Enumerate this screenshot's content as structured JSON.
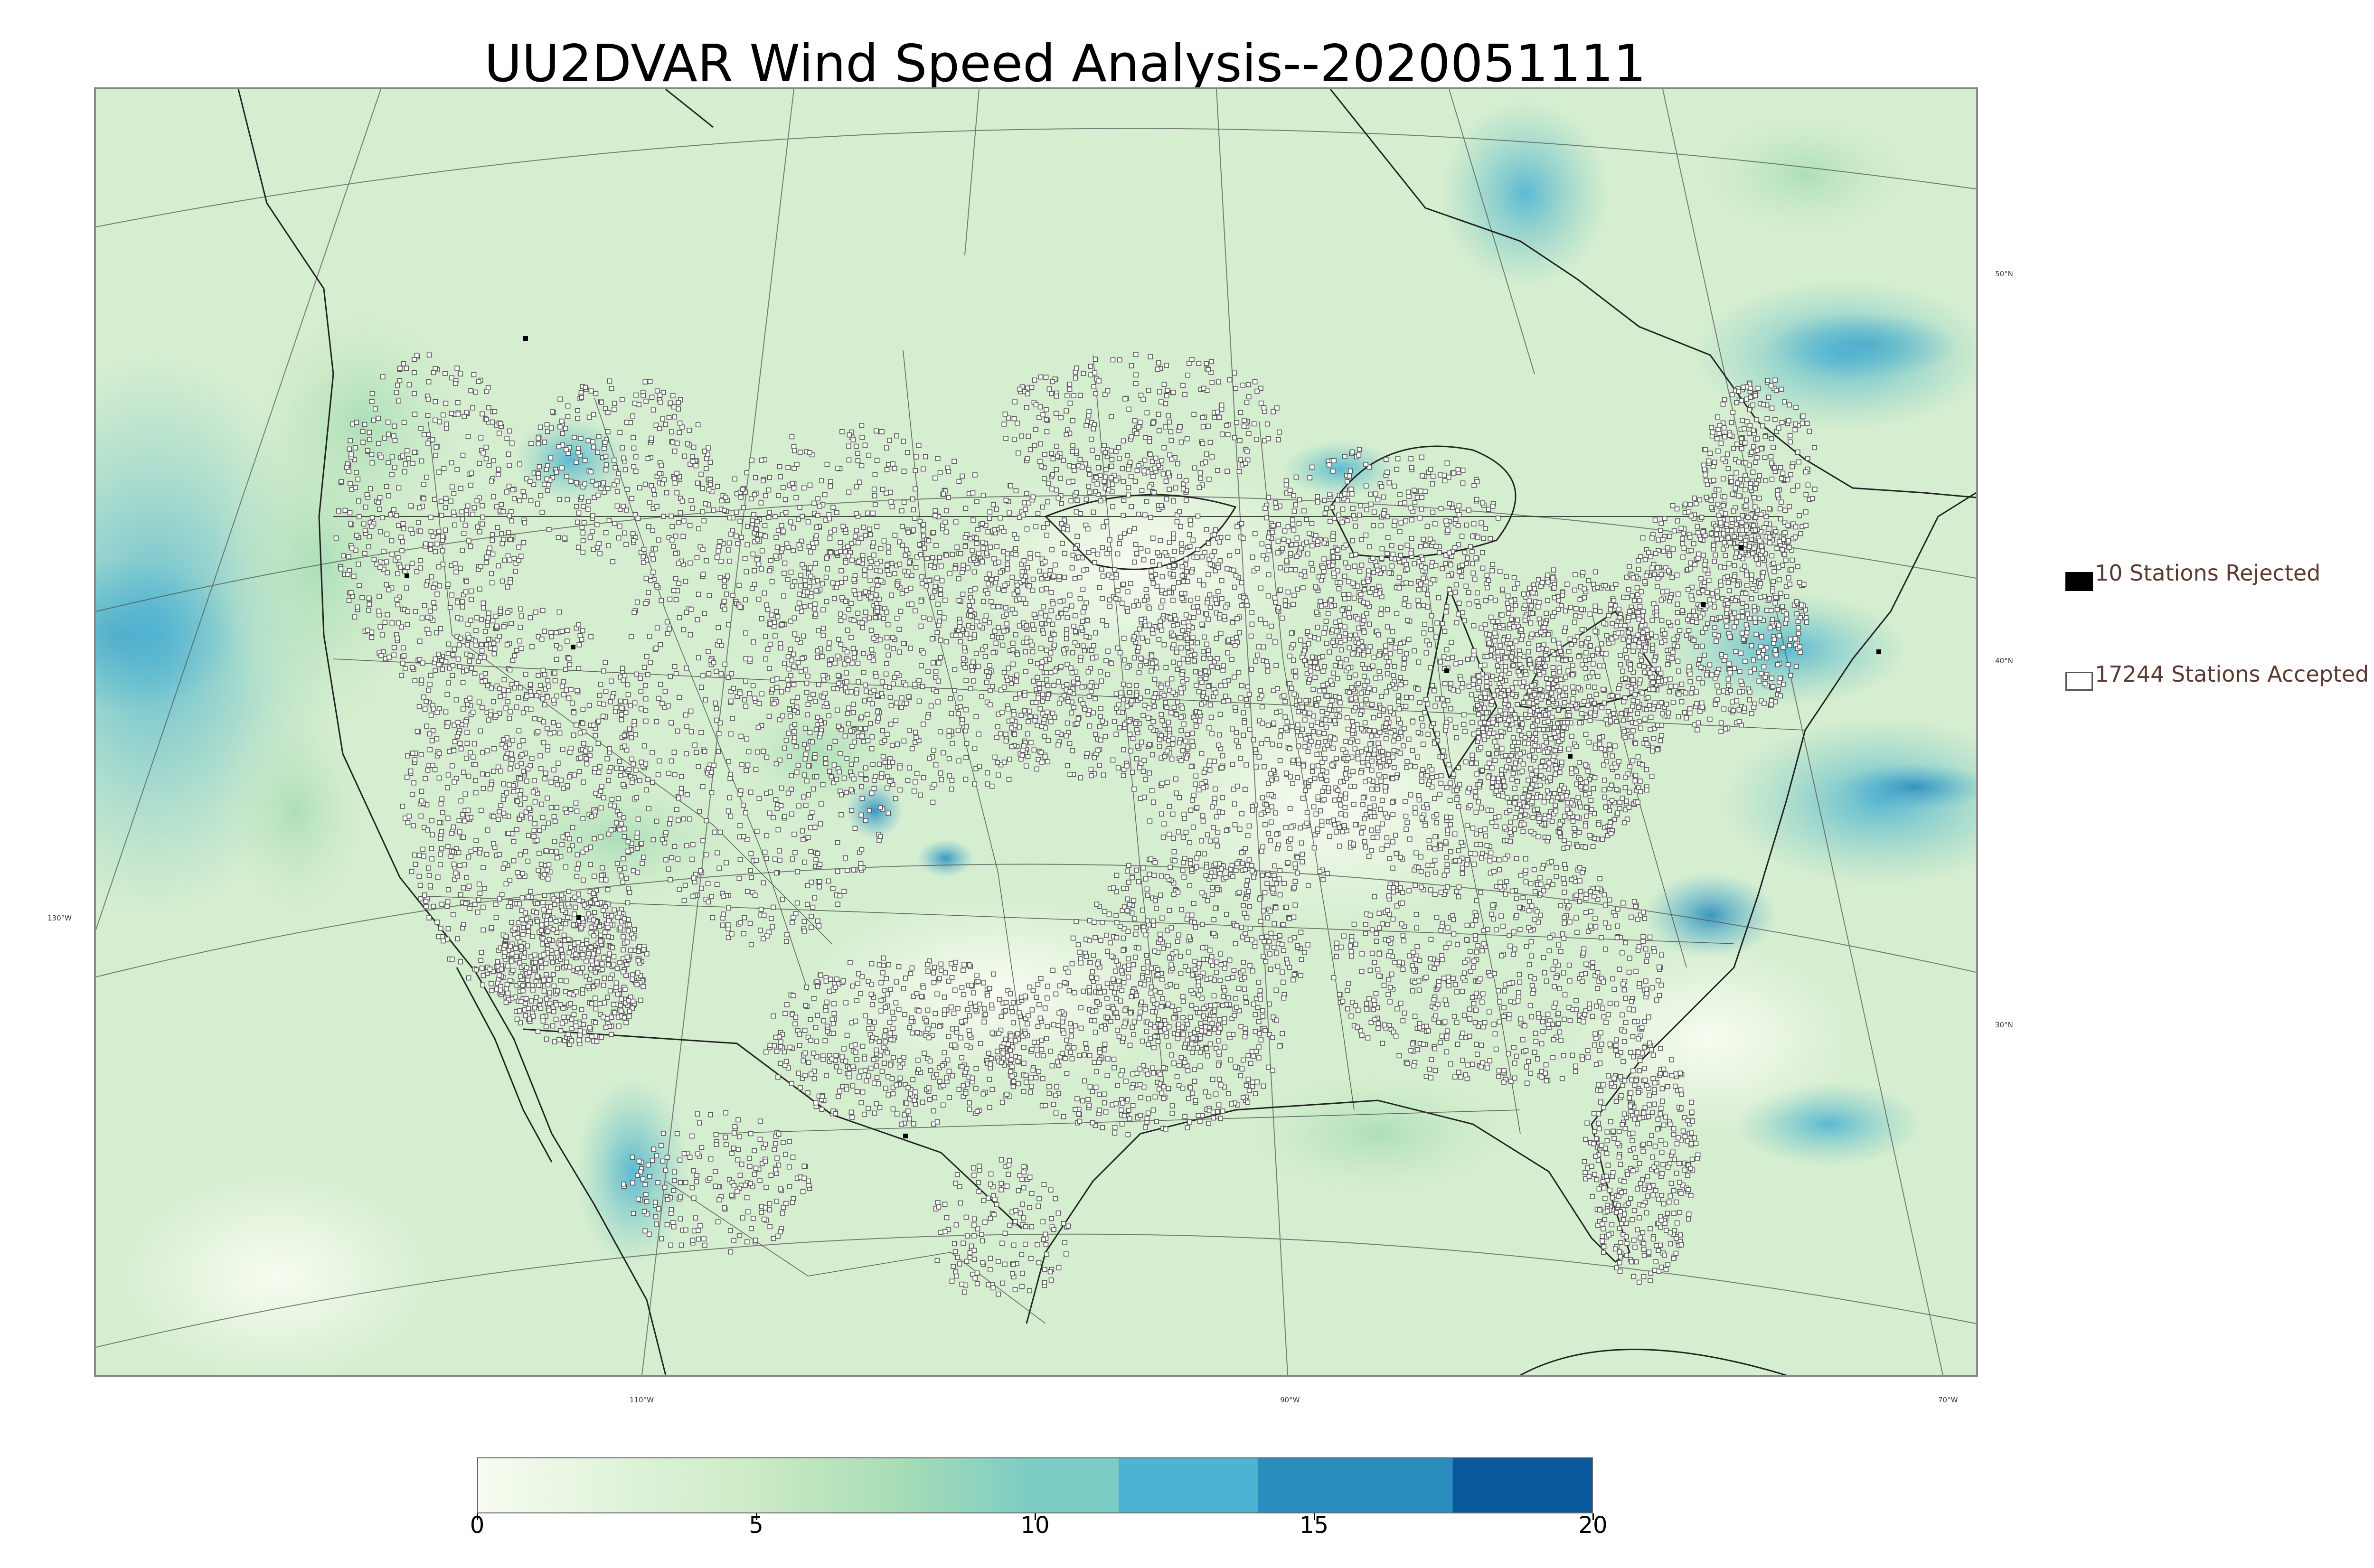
{
  "title": "UU2DVAR Wind Speed Analysis--2020051111",
  "legend": {
    "rejected": {
      "label": "10 Stations Rejected",
      "count": 10,
      "color": "#000000"
    },
    "accepted": {
      "label": "17244 Stations Accepted",
      "count": 17244,
      "color": "#ffffff"
    }
  },
  "graticule": {
    "lat_labels": [
      "50°N",
      "40°N",
      "30°N"
    ],
    "lon_labels": [
      "130°W",
      "110°W",
      "90°W",
      "70°W"
    ]
  },
  "colorbar": {
    "min": 0,
    "max": 20,
    "ticks": [
      "0",
      "5",
      "10",
      "15",
      "20"
    ],
    "colors": [
      "#f7fcf0",
      "#e0f3db",
      "#ccebc5",
      "#a8ddb5",
      "#7bccc4",
      "#4eb3d3",
      "#2b8cbe",
      "#08589e"
    ],
    "bounds": [
      0,
      2.5,
      5,
      7.5,
      10,
      11.5,
      14,
      17.5,
      20
    ]
  },
  "colors": {
    "land": "#e8f5e2",
    "ocean": "#d2edcd",
    "station_outline": "#555555"
  }
}
